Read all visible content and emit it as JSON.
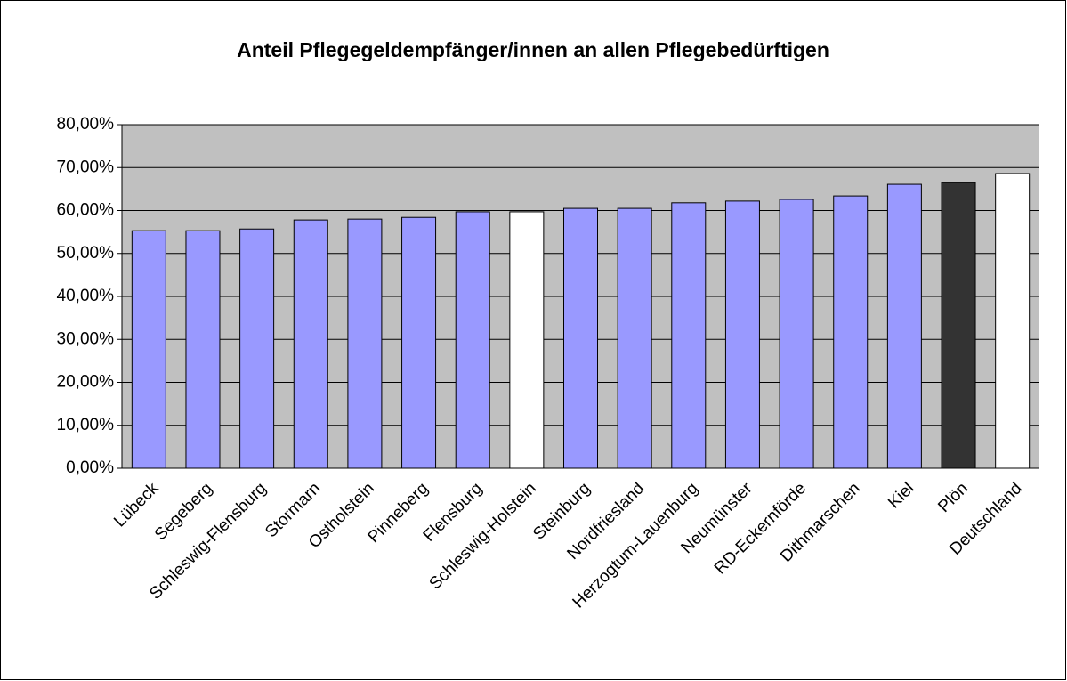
{
  "chart_data": {
    "type": "bar",
    "title": "Anteil Pflegegeldempfänger/innen an allen Pflegebedürftigen",
    "categories": [
      "Lübeck",
      "Segeberg",
      "Schleswig-Flensburg",
      "Stormarn",
      "Ostholstein",
      "Pinneberg",
      "Flensburg",
      "Schleswig-Holstein",
      "Steinburg",
      "Nordfriesland",
      "Herzogtum-Lauenburg",
      "Neumünster",
      "RD-Eckernförde",
      "Dithmarschen",
      "Kiel",
      "Plön",
      "Deutschland"
    ],
    "values": [
      55.3,
      55.3,
      55.7,
      57.8,
      58.0,
      58.4,
      59.7,
      59.7,
      60.5,
      60.5,
      61.8,
      62.2,
      62.6,
      63.4,
      66.1,
      66.5,
      68.6
    ],
    "colors": [
      "#9999ff",
      "#9999ff",
      "#9999ff",
      "#9999ff",
      "#9999ff",
      "#9999ff",
      "#9999ff",
      "#ffffff",
      "#9999ff",
      "#9999ff",
      "#9999ff",
      "#9999ff",
      "#9999ff",
      "#9999ff",
      "#9999ff",
      "#333333",
      "#ffffff"
    ],
    "ylim": [
      0,
      80
    ],
    "yticks": [
      {
        "value": 0,
        "label": "0,00%"
      },
      {
        "value": 10,
        "label": "10,00%"
      },
      {
        "value": 20,
        "label": "20,00%"
      },
      {
        "value": 30,
        "label": "30,00%"
      },
      {
        "value": 40,
        "label": "40,00%"
      },
      {
        "value": 50,
        "label": "50,00%"
      },
      {
        "value": 60,
        "label": "60,00%"
      },
      {
        "value": 70,
        "label": "70,00%"
      },
      {
        "value": 80,
        "label": "80,00%"
      }
    ],
    "grid": true
  }
}
